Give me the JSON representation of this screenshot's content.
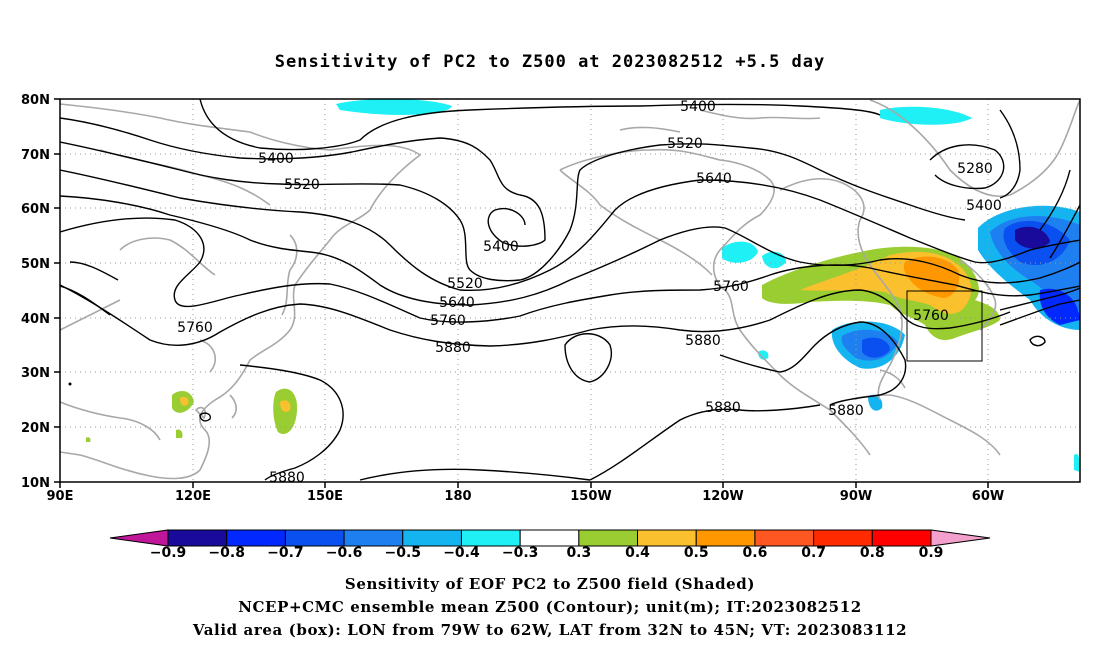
{
  "title": "Sensitivity of PC2 to Z500 at 2023082512 +5.5 day",
  "map": {
    "lat_labels": [
      "80N",
      "70N",
      "60N",
      "50N",
      "40N",
      "30N",
      "20N",
      "10N"
    ],
    "lon_labels": [
      "90E",
      "120E",
      "150E",
      "180",
      "150W",
      "120W",
      "90W",
      "60W"
    ],
    "contour_labels": [
      "5400",
      "5520",
      "5640",
      "5400",
      "5280",
      "5400",
      "5520",
      "5400",
      "5520",
      "5640",
      "5760",
      "5880",
      "5760",
      "5880",
      "5760",
      "5880",
      "5880",
      "5880",
      "5760"
    ],
    "valid_box": {
      "lon_from": "79W",
      "lon_to": "62W",
      "lat_from": "32N",
      "lat_to": "45N"
    }
  },
  "colorbar": {
    "labels": [
      "-0.9",
      "-0.8",
      "-0.7",
      "-0.6",
      "-0.5",
      "-0.4",
      "-0.3",
      "0.3",
      "0.4",
      "0.5",
      "0.6",
      "0.7",
      "0.8",
      "0.9"
    ],
    "colors": [
      "#1a0a9c",
      "#0028ff",
      "#0a50f0",
      "#1e7ff0",
      "#14b4f0",
      "#1ef0f5",
      "#ffffff",
      "#9acd32",
      "#fbc02d",
      "#ff9800",
      "#ff5722",
      "#ff2a00",
      "#ff0000"
    ],
    "left_arrow_color": "#c0169a",
    "right_arrow_color": "#f4a0cc"
  },
  "caption": [
    "Sensitivity of EOF PC2 to Z500 field (Shaded)",
    "NCEP+CMC ensemble mean Z500 (Contour); unit(m); IT:2023082512",
    "Valid area (box): LON from 79W to 62W, LAT from 32N to 45N; VT: 2023083112"
  ]
}
